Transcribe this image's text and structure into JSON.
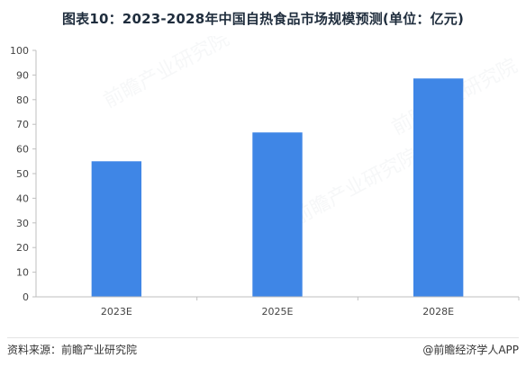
{
  "title": "图表10：2023-2028年中国自热食品市场规模预测(单位：亿元)",
  "footer": {
    "source": "资料来源：前瞻产业研究院",
    "credit": "@前瞻经济学人APP"
  },
  "watermark": {
    "text": "前瞻产业研究院"
  },
  "colors": {
    "bar": "#3f86e6",
    "axis": "#bfbfbf",
    "tick_text": "#444444"
  },
  "chart_data": {
    "type": "bar",
    "title": "图表10：2023-2028年中国自热食品市场规模预测(单位：亿元)",
    "categories": [
      "2023E",
      "2025E",
      "2028E"
    ],
    "values": [
      55,
      66.7,
      88.6
    ],
    "xlabel": "",
    "ylabel": "",
    "ylim": [
      0,
      100
    ],
    "yticks": [
      0,
      10,
      20,
      30,
      40,
      50,
      60,
      70,
      80,
      90,
      100
    ],
    "grid": false,
    "legend": "none"
  }
}
